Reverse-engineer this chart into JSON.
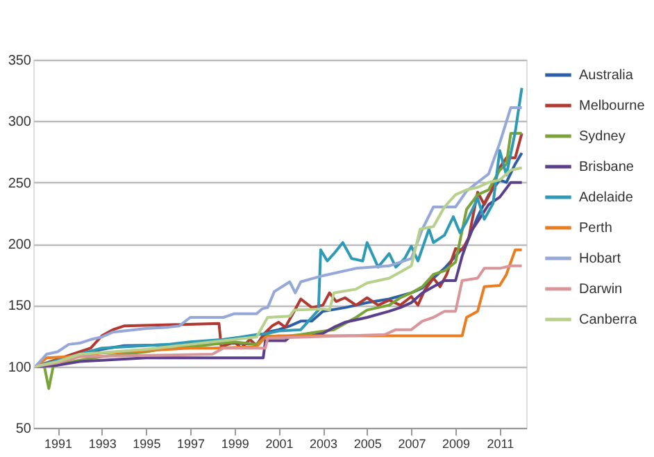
{
  "chart_data": {
    "type": "line",
    "xlim": [
      1989.9,
      2012.2
    ],
    "ylim": [
      50,
      350
    ],
    "xticks": [
      1991,
      1993,
      1995,
      1997,
      1999,
      2001,
      2003,
      2005,
      2007,
      2009,
      2011
    ],
    "yticks": [
      50,
      100,
      150,
      200,
      250,
      300,
      350
    ],
    "grid": "y",
    "legend": "right",
    "marker": "none",
    "line_style": "solid",
    "series": [
      {
        "name": "Australia",
        "color": "#2e5fa6",
        "x": [
          1990,
          1991,
          1992,
          1993,
          1994,
          1997,
          1999,
          2000,
          2000.5,
          2001,
          2001.5,
          2002,
          2002.5,
          2003,
          2004,
          2005,
          2006,
          2007,
          2007.5,
          2008,
          2008.5,
          2009,
          2009.5,
          2010,
          2010.5,
          2011,
          2011.3,
          2011.7,
          2012
        ],
        "values": [
          100,
          105,
          110,
          114,
          117,
          118,
          119,
          118,
          128,
          130,
          133,
          137,
          137,
          145,
          148,
          152,
          155,
          160,
          164,
          172,
          180,
          190,
          200,
          222,
          240,
          252,
          250,
          265,
          274
        ]
      },
      {
        "name": "Melbourne",
        "color": "#b03a32",
        "x": [
          1990,
          1991,
          1992,
          1992.5,
          1993,
          1993.5,
          1994,
          1998.3,
          1998.4,
          1998.7,
          1999,
          1999.3,
          1999.7,
          2000,
          2000.3,
          2000.7,
          2001,
          2001.3,
          2001.7,
          2002,
          2002.5,
          2003,
          2003.3,
          2003.6,
          2004,
          2004.5,
          2005,
          2005.5,
          2006,
          2006.5,
          2007,
          2007.3,
          2007.6,
          2008,
          2008.3,
          2008.6,
          2009,
          2009.3,
          2009.6,
          2010,
          2010.3,
          2010.6,
          2011,
          2011.3,
          2011.7,
          2012
        ],
        "values": [
          100,
          106,
          112,
          115,
          125,
          130,
          133,
          135,
          116,
          118,
          120,
          115,
          122,
          117,
          126,
          133,
          136,
          132,
          145,
          155,
          148,
          150,
          160,
          153,
          156,
          150,
          156,
          150,
          154,
          150,
          157,
          150,
          162,
          172,
          165,
          175,
          196,
          195,
          205,
          242,
          232,
          242,
          262,
          270,
          270,
          290
        ]
      },
      {
        "name": "Sydney",
        "color": "#7aa33a",
        "x": [
          1990,
          1990.4,
          1990.6,
          1990.8,
          1991,
          1992,
          1993,
          1995,
          1996,
          1997,
          1998,
          1999,
          2000,
          2000.5,
          2001,
          2002,
          2002.7,
          2003.5,
          2004,
          2004.5,
          2005,
          2006,
          2006.5,
          2007,
          2007.5,
          2008,
          2008.5,
          2009,
          2009.5,
          2010,
          2010.5,
          2011,
          2011.3,
          2011.5,
          2012
        ],
        "values": [
          100,
          100,
          82,
          100,
          102,
          105,
          108,
          112,
          115,
          116,
          118,
          120,
          118,
          125,
          124,
          126,
          128,
          130,
          135,
          140,
          146,
          150,
          156,
          160,
          165,
          175,
          178,
          185,
          228,
          240,
          244,
          260,
          265,
          290,
          290
        ]
      },
      {
        "name": "Brisbane",
        "color": "#5b3f8a",
        "x": [
          1990,
          1991,
          1992,
          1993,
          1994,
          1995,
          2000.3,
          2000.4,
          2001.3,
          2001.5,
          2002.5,
          2003,
          2003.5,
          2004,
          2005,
          2006,
          2006.5,
          2007,
          2007.5,
          2008,
          2008.5,
          2009,
          2009.3,
          2009.7,
          2010,
          2010.5,
          2011,
          2011.5,
          2012
        ],
        "values": [
          100,
          101,
          104,
          105,
          106,
          107,
          107,
          121,
          121,
          124,
          125,
          127,
          132,
          136,
          140,
          145,
          148,
          152,
          160,
          165,
          170,
          170,
          190,
          210,
          218,
          232,
          238,
          250,
          250
        ]
      },
      {
        "name": "Adelaide",
        "color": "#2f9ab5",
        "x": [
          1990,
          1992,
          1993,
          1996,
          1997,
          1998.5,
          1999.3,
          2000,
          2000.5,
          2001,
          2002,
          2002.8,
          2002.9,
          2003.2,
          2003.5,
          2003.9,
          2004.3,
          2004.8,
          2005,
          2005.5,
          2006,
          2006.3,
          2006.7,
          2007,
          2007.3,
          2007.8,
          2008,
          2008.5,
          2008.9,
          2009.2,
          2009.5,
          2010,
          2010.3,
          2010.7,
          2011,
          2011.3,
          2011.7,
          2012
        ],
        "values": [
          100,
          110,
          115,
          118,
          120,
          122,
          124,
          126,
          127,
          129,
          130,
          146,
          195,
          186,
          192,
          201,
          188,
          186,
          201,
          181,
          192,
          181,
          188,
          198,
          186,
          212,
          201,
          207,
          222,
          209,
          218,
          237,
          220,
          233,
          276,
          256,
          291,
          327
        ]
      },
      {
        "name": "Perth",
        "color": "#e87d22",
        "x": [
          1990,
          1990.5,
          1991.5,
          1992.5,
          1993,
          1995,
          1996,
          1997,
          1998,
          2000,
          2000.4,
          2001,
          2009.3,
          2009.5,
          2010,
          2010.3,
          2011,
          2011.3,
          2011.7,
          2012
        ],
        "values": [
          100,
          107,
          108,
          110,
          111,
          113,
          114,
          115,
          115,
          116,
          124,
          125,
          125,
          140,
          145,
          165,
          166,
          175,
          195,
          195
        ]
      },
      {
        "name": "Hobart",
        "color": "#95a8d8",
        "x": [
          1990,
          1990.5,
          1991,
          1991.5,
          1992,
          1992.5,
          1993,
          1993.5,
          1994,
          1995,
          1996,
          1996.5,
          1997,
          1998.5,
          1999,
          2000,
          2000.25,
          2000.5,
          2000.8,
          2001.5,
          2001.75,
          2002,
          2003,
          2004.5,
          2006,
          2007,
          2007.5,
          2008,
          2009,
          2009.5,
          2010.5,
          2011,
          2011.5,
          2012
        ],
        "values": [
          100,
          110,
          112,
          118,
          119,
          122,
          124,
          128,
          129,
          131,
          132,
          133,
          140,
          140,
          143,
          143,
          147,
          148,
          161,
          169,
          160,
          169,
          174,
          180,
          182,
          188,
          212,
          230,
          230,
          243,
          257,
          282,
          311,
          311
        ]
      },
      {
        "name": "Darwin",
        "color": "#d9969a",
        "x": [
          1990,
          1991,
          1992,
          1995,
          1998,
          1998.5,
          2000.4,
          2000.5,
          2005.8,
          2006.3,
          2007,
          2007.5,
          2008,
          2008.5,
          2009,
          2009.3,
          2010,
          2010.3,
          2011,
          2011.5,
          2012
        ],
        "values": [
          100,
          103,
          108,
          109,
          110,
          115,
          115,
          123,
          126,
          130,
          130,
          137,
          140,
          145,
          145,
          170,
          172,
          180,
          180,
          182,
          182
        ]
      },
      {
        "name": "Canberra",
        "color": "#b7d08c",
        "x": [
          1990,
          1991,
          1992,
          1995,
          1997,
          1998,
          1999,
          2000,
          2000.5,
          2001.5,
          2001.7,
          2003,
          2003.3,
          2003.5,
          2004.5,
          2005,
          2006,
          2006.5,
          2007,
          2007.4,
          2008,
          2008.5,
          2009,
          2009.5,
          2010,
          2010.5,
          2011,
          2011.5,
          2012
        ],
        "values": [
          100,
          104,
          110,
          114,
          118,
          120,
          122,
          124,
          140,
          141,
          146,
          147,
          146,
          160,
          163,
          168,
          172,
          177,
          182,
          212,
          214,
          230,
          240,
          244,
          246,
          250,
          252,
          260,
          262
        ]
      }
    ]
  }
}
